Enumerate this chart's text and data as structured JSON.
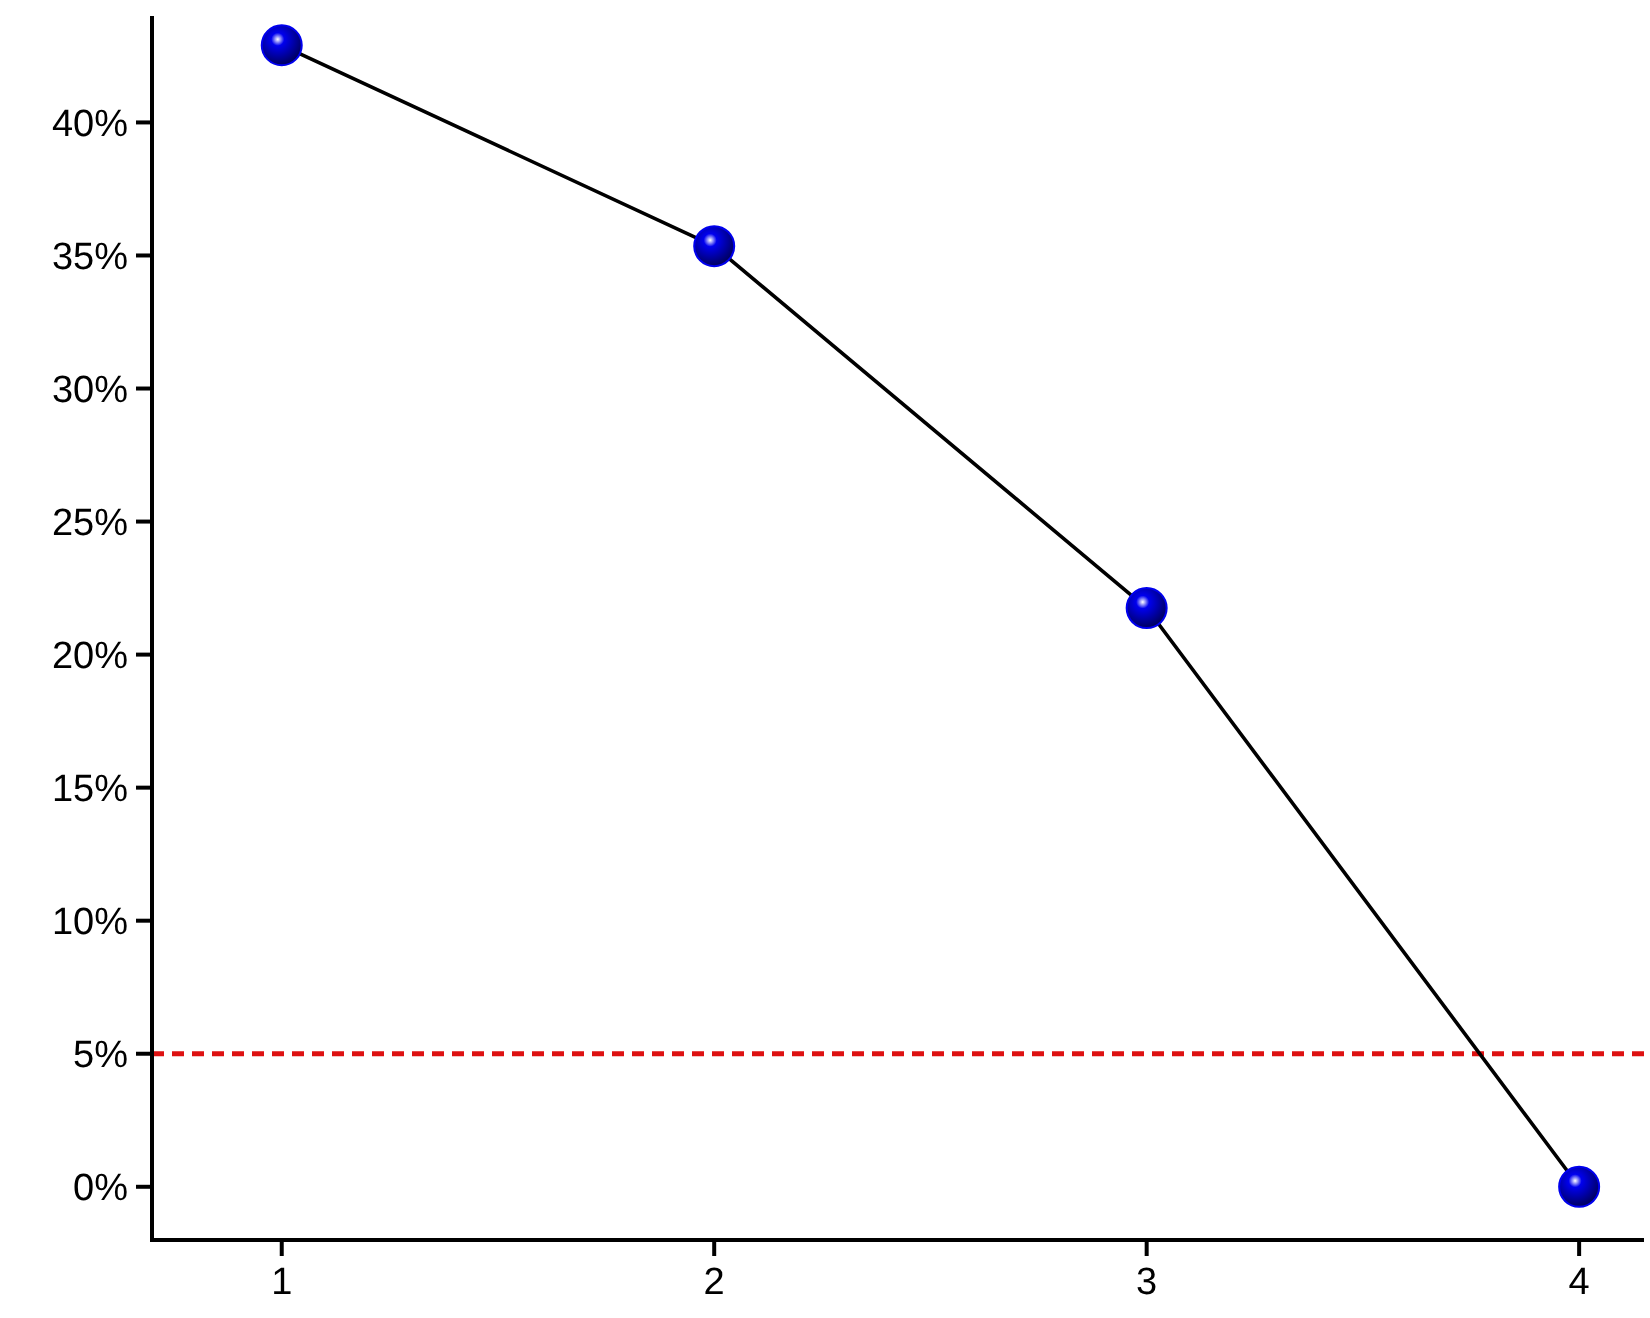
{
  "chart_data": {
    "type": "line",
    "x": [
      1,
      2,
      3,
      4
    ],
    "series": [
      {
        "color": "#0000ee",
        "values": [
          42.9,
          35.35,
          21.75,
          0
        ]
      }
    ],
    "xlim": [
      0.7,
      4.15
    ],
    "xticks": [
      1,
      2,
      3,
      4
    ],
    "ylim": [
      -2,
      44
    ],
    "yticks": [
      {
        "value": 0,
        "label": "0%"
      },
      {
        "value": 5,
        "label": "5%"
      },
      {
        "value": 10,
        "label": "10%"
      },
      {
        "value": 15,
        "label": "15%"
      },
      {
        "value": 20,
        "label": "20%"
      },
      {
        "value": 25,
        "label": "25%"
      },
      {
        "value": 30,
        "label": "30%"
      },
      {
        "value": 35,
        "label": "35%"
      },
      {
        "value": 40,
        "label": "40%"
      }
    ],
    "ref_lines": [
      {
        "axis": "y",
        "value": 5,
        "color": "#dd1111",
        "line_style": "dashed"
      }
    ],
    "marker": "circle"
  }
}
